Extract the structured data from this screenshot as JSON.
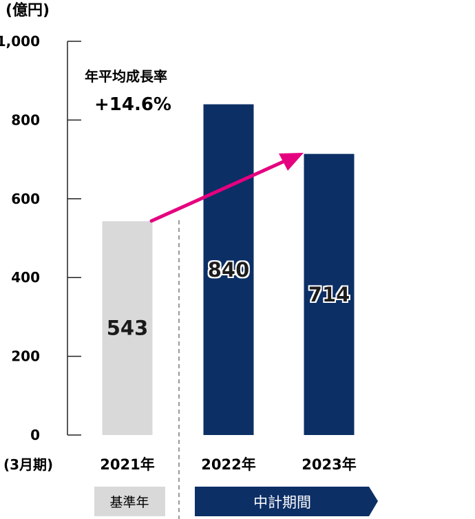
{
  "chart_data": {
    "type": "bar",
    "unit_label": "(億円)",
    "period_label": "(3月期)",
    "y_ticks": [
      "1,000",
      "800",
      "600",
      "400",
      "200",
      "0"
    ],
    "ylim": [
      0,
      1000
    ],
    "grid": false,
    "categories": [
      "2021年",
      "2022年",
      "2023年"
    ],
    "values": [
      543,
      840,
      714
    ],
    "value_labels": [
      "543",
      "840",
      "714"
    ],
    "bar_colors": [
      "#d9d9d9",
      "#0c2f66",
      "#0c2f66"
    ],
    "annotation": {
      "title": "年平均成長率",
      "value": "+14.6%",
      "arrow_color": "#e5007f"
    },
    "group_labels": {
      "base": "基準年",
      "plan": "中計期間"
    }
  }
}
